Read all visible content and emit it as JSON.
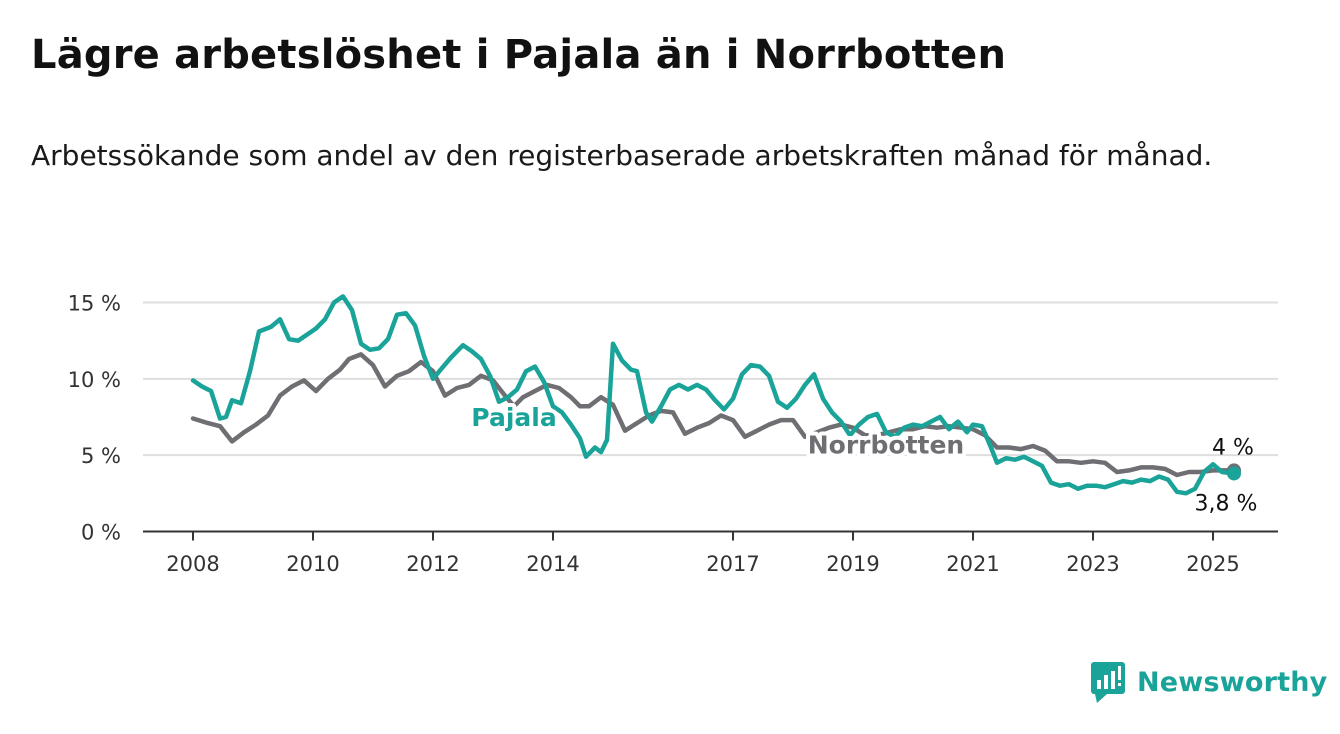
{
  "header": {
    "title": "Lägre arbetslöshet i Pajala än i Norrbotten",
    "subtitle": "Arbetssökande som andel av den registerbaserade arbetskraften månad för månad."
  },
  "brand": {
    "name": "Newsworthy",
    "logo_icon": "bar-chart-speech-bubble-icon"
  },
  "chart_data": {
    "type": "line",
    "xlim": [
      2007.2,
      2026.1
    ],
    "ylim": [
      0,
      16
    ],
    "x_ticks": [
      2008,
      2010,
      2012,
      2014,
      2017,
      2019,
      2021,
      2023,
      2025
    ],
    "x_tick_labels": [
      "2008",
      "2010",
      "2012",
      "2014",
      "2017",
      "2019",
      "2021",
      "2023",
      "2025"
    ],
    "y_ticks": [
      0,
      5,
      10,
      15
    ],
    "y_tick_labels": [
      "0 %",
      "5 %",
      "10 %",
      "15 %"
    ],
    "grid": "horizontal",
    "series": [
      {
        "name": "Norrbotten",
        "color": "#6e6e73",
        "end_label": "4 %",
        "points": [
          [
            2008.0,
            7.4
          ],
          [
            2008.25,
            7.1
          ],
          [
            2008.45,
            6.9
          ],
          [
            2008.65,
            5.9
          ],
          [
            2008.85,
            6.5
          ],
          [
            2009.05,
            7.0
          ],
          [
            2009.25,
            7.6
          ],
          [
            2009.45,
            8.9
          ],
          [
            2009.65,
            9.5
          ],
          [
            2009.85,
            9.9
          ],
          [
            2010.05,
            9.2
          ],
          [
            2010.25,
            10.0
          ],
          [
            2010.45,
            10.6
          ],
          [
            2010.6,
            11.3
          ],
          [
            2010.8,
            11.6
          ],
          [
            2011.0,
            10.9
          ],
          [
            2011.2,
            9.5
          ],
          [
            2011.4,
            10.2
          ],
          [
            2011.6,
            10.5
          ],
          [
            2011.8,
            11.1
          ],
          [
            2012.0,
            10.5
          ],
          [
            2012.2,
            8.9
          ],
          [
            2012.4,
            9.4
          ],
          [
            2012.6,
            9.6
          ],
          [
            2012.8,
            10.2
          ],
          [
            2013.0,
            9.9
          ],
          [
            2013.2,
            8.9
          ],
          [
            2013.35,
            8.2
          ],
          [
            2013.5,
            8.8
          ],
          [
            2013.7,
            9.2
          ],
          [
            2013.9,
            9.6
          ],
          [
            2014.1,
            9.4
          ],
          [
            2014.3,
            8.8
          ],
          [
            2014.45,
            8.2
          ],
          [
            2014.6,
            8.2
          ],
          [
            2014.8,
            8.8
          ],
          [
            2015.0,
            8.3
          ],
          [
            2015.2,
            6.6
          ],
          [
            2015.4,
            7.1
          ],
          [
            2015.6,
            7.6
          ],
          [
            2015.8,
            7.9
          ],
          [
            2016.0,
            7.8
          ],
          [
            2016.2,
            6.4
          ],
          [
            2016.4,
            6.8
          ],
          [
            2016.6,
            7.1
          ],
          [
            2016.8,
            7.6
          ],
          [
            2017.0,
            7.3
          ],
          [
            2017.2,
            6.2
          ],
          [
            2017.4,
            6.6
          ],
          [
            2017.6,
            7.0
          ],
          [
            2017.8,
            7.3
          ],
          [
            2018.0,
            7.3
          ],
          [
            2018.2,
            6.2
          ],
          [
            2018.4,
            6.5
          ],
          [
            2018.6,
            6.8
          ],
          [
            2018.8,
            7.0
          ],
          [
            2019.0,
            6.8
          ],
          [
            2019.2,
            6.3
          ],
          [
            2019.4,
            6.3
          ],
          [
            2019.6,
            6.5
          ],
          [
            2019.8,
            6.7
          ],
          [
            2020.0,
            6.7
          ],
          [
            2020.2,
            6.9
          ],
          [
            2020.4,
            6.8
          ],
          [
            2020.6,
            6.9
          ],
          [
            2020.8,
            6.8
          ],
          [
            2021.0,
            6.7
          ],
          [
            2021.2,
            6.3
          ],
          [
            2021.4,
            5.5
          ],
          [
            2021.6,
            5.5
          ],
          [
            2021.8,
            5.4
          ],
          [
            2022.0,
            5.6
          ],
          [
            2022.2,
            5.3
          ],
          [
            2022.4,
            4.6
          ],
          [
            2022.6,
            4.6
          ],
          [
            2022.8,
            4.5
          ],
          [
            2023.0,
            4.6
          ],
          [
            2023.2,
            4.5
          ],
          [
            2023.4,
            3.9
          ],
          [
            2023.6,
            4.0
          ],
          [
            2023.8,
            4.2
          ],
          [
            2024.0,
            4.2
          ],
          [
            2024.2,
            4.1
          ],
          [
            2024.4,
            3.7
          ],
          [
            2024.6,
            3.9
          ],
          [
            2024.8,
            3.9
          ],
          [
            2025.0,
            4.0
          ],
          [
            2025.2,
            4.0
          ],
          [
            2025.35,
            4.0
          ]
        ]
      },
      {
        "name": "Pajala",
        "color": "#1aa398",
        "end_label": "3,8 %",
        "points": [
          [
            2008.0,
            9.9
          ],
          [
            2008.15,
            9.5
          ],
          [
            2008.3,
            9.2
          ],
          [
            2008.45,
            7.4
          ],
          [
            2008.55,
            7.5
          ],
          [
            2008.65,
            8.6
          ],
          [
            2008.8,
            8.4
          ],
          [
            2008.95,
            10.5
          ],
          [
            2009.1,
            13.1
          ],
          [
            2009.3,
            13.4
          ],
          [
            2009.45,
            13.9
          ],
          [
            2009.6,
            12.6
          ],
          [
            2009.75,
            12.5
          ],
          [
            2009.9,
            12.9
          ],
          [
            2010.05,
            13.3
          ],
          [
            2010.2,
            13.9
          ],
          [
            2010.35,
            15.0
          ],
          [
            2010.5,
            15.4
          ],
          [
            2010.65,
            14.5
          ],
          [
            2010.8,
            12.3
          ],
          [
            2010.95,
            11.9
          ],
          [
            2011.1,
            12.0
          ],
          [
            2011.25,
            12.6
          ],
          [
            2011.4,
            14.2
          ],
          [
            2011.55,
            14.3
          ],
          [
            2011.7,
            13.5
          ],
          [
            2011.85,
            11.5
          ],
          [
            2012.0,
            10.0
          ],
          [
            2012.15,
            10.7
          ],
          [
            2012.3,
            11.4
          ],
          [
            2012.5,
            12.2
          ],
          [
            2012.65,
            11.8
          ],
          [
            2012.8,
            11.3
          ],
          [
            2012.95,
            10.2
          ],
          [
            2013.1,
            8.5
          ],
          [
            2013.25,
            8.8
          ],
          [
            2013.4,
            9.3
          ],
          [
            2013.55,
            10.5
          ],
          [
            2013.7,
            10.8
          ],
          [
            2013.85,
            9.8
          ],
          [
            2014.0,
            8.2
          ],
          [
            2014.15,
            7.8
          ],
          [
            2014.3,
            7.0
          ],
          [
            2014.45,
            6.1
          ],
          [
            2014.55,
            4.9
          ],
          [
            2014.7,
            5.5
          ],
          [
            2014.8,
            5.2
          ],
          [
            2014.9,
            6.0
          ],
          [
            2015.0,
            12.3
          ],
          [
            2015.15,
            11.2
          ],
          [
            2015.3,
            10.6
          ],
          [
            2015.4,
            10.5
          ],
          [
            2015.55,
            7.8
          ],
          [
            2015.65,
            7.2
          ],
          [
            2015.8,
            8.2
          ],
          [
            2015.95,
            9.3
          ],
          [
            2016.1,
            9.6
          ],
          [
            2016.25,
            9.3
          ],
          [
            2016.4,
            9.6
          ],
          [
            2016.55,
            9.3
          ],
          [
            2016.7,
            8.6
          ],
          [
            2016.85,
            8.0
          ],
          [
            2017.0,
            8.7
          ],
          [
            2017.15,
            10.3
          ],
          [
            2017.3,
            10.9
          ],
          [
            2017.45,
            10.8
          ],
          [
            2017.6,
            10.2
          ],
          [
            2017.75,
            8.5
          ],
          [
            2017.9,
            8.1
          ],
          [
            2018.05,
            8.7
          ],
          [
            2018.2,
            9.6
          ],
          [
            2018.35,
            10.3
          ],
          [
            2018.5,
            8.7
          ],
          [
            2018.65,
            7.8
          ],
          [
            2018.8,
            7.2
          ],
          [
            2018.95,
            6.3
          ],
          [
            2019.1,
            7.0
          ],
          [
            2019.25,
            7.5
          ],
          [
            2019.4,
            7.7
          ],
          [
            2019.55,
            6.5
          ],
          [
            2019.7,
            6.2
          ],
          [
            2019.85,
            6.8
          ],
          [
            2020.0,
            7.0
          ],
          [
            2020.15,
            6.9
          ],
          [
            2020.3,
            7.2
          ],
          [
            2020.45,
            7.5
          ],
          [
            2020.6,
            6.7
          ],
          [
            2020.75,
            7.2
          ],
          [
            2020.9,
            6.5
          ],
          [
            2021.0,
            7.0
          ],
          [
            2021.15,
            6.9
          ],
          [
            2021.3,
            5.5
          ],
          [
            2021.4,
            4.5
          ],
          [
            2021.55,
            4.8
          ],
          [
            2021.7,
            4.7
          ],
          [
            2021.85,
            4.9
          ],
          [
            2022.0,
            4.6
          ],
          [
            2022.15,
            4.3
          ],
          [
            2022.3,
            3.2
          ],
          [
            2022.45,
            3.0
          ],
          [
            2022.6,
            3.1
          ],
          [
            2022.75,
            2.8
          ],
          [
            2022.9,
            3.0
          ],
          [
            2023.05,
            3.0
          ],
          [
            2023.2,
            2.9
          ],
          [
            2023.35,
            3.1
          ],
          [
            2023.5,
            3.3
          ],
          [
            2023.65,
            3.2
          ],
          [
            2023.8,
            3.4
          ],
          [
            2023.95,
            3.3
          ],
          [
            2024.1,
            3.6
          ],
          [
            2024.25,
            3.4
          ],
          [
            2024.4,
            2.6
          ],
          [
            2024.55,
            2.5
          ],
          [
            2024.7,
            2.8
          ],
          [
            2024.85,
            3.9
          ],
          [
            2025.0,
            4.4
          ],
          [
            2025.15,
            3.9
          ],
          [
            2025.35,
            3.8
          ]
        ]
      }
    ],
    "annotations": [
      {
        "text": "Pajala",
        "series": "Pajala",
        "x": 2013.35,
        "y": 7.5
      },
      {
        "text": "Norrbotten",
        "series": "Norrbotten",
        "x": 2019.55,
        "y": 5.7
      }
    ]
  }
}
